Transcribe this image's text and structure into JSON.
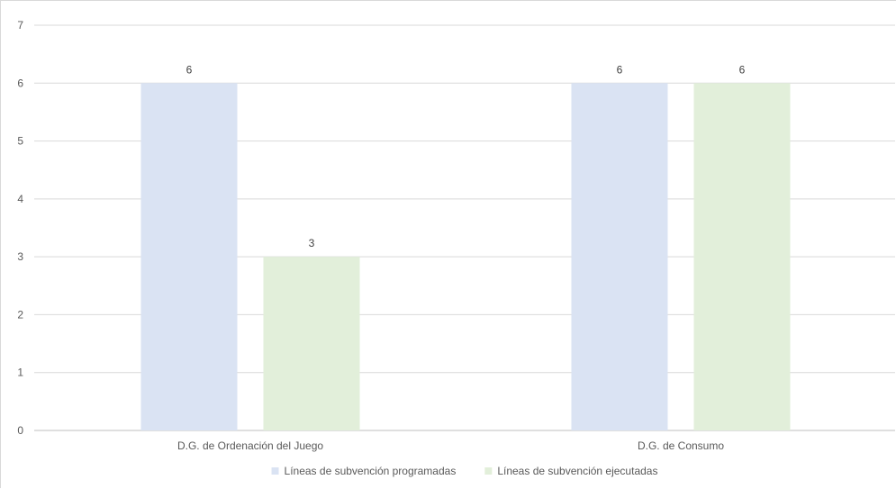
{
  "chart_data": {
    "type": "bar",
    "categories": [
      "D.G. de Ordenación del Juego",
      "D.G. de Consumo"
    ],
    "series": [
      {
        "name": "Líneas de subvención programadas",
        "values": [
          6,
          6
        ],
        "color": "#dae3f3"
      },
      {
        "name": "Líneas de subvención ejecutadas",
        "values": [
          3,
          6
        ],
        "color": "#e2efda"
      }
    ],
    "data_labels": [
      [
        6,
        6
      ],
      [
        3,
        6
      ]
    ],
    "ylim": [
      0,
      7
    ],
    "yticks": [
      0,
      1,
      2,
      3,
      4,
      5,
      6,
      7
    ],
    "grid": true,
    "legend_position": "bottom",
    "title": "",
    "xlabel": "",
    "ylabel": ""
  }
}
